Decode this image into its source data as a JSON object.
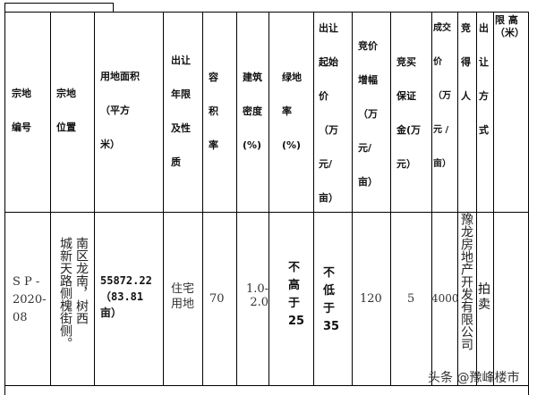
{
  "headers": {
    "parcel_no": "宗地\n\n编号",
    "location": "宗地\n\n位置",
    "area": "用地面积\n\n（平方\n\n米）",
    "term_use": "出让\n\n年限\n\n及性\n\n质",
    "far": "容\n\n积\n\n率",
    "density": "建筑\n\n密度\n\n(%)",
    "green": "绿地\n\n率\n\n(%)",
    "start_price": "出让\n\n起始\n\n价\n\n（万\n\n元/\n\n亩）",
    "increment": "竞价\n\n增幅\n\n（万\n\n元/\n\n亩）",
    "deposit": "竞买\n\n保证\n\n金(万\n\n元）",
    "deal_price": "成交\n\n价\n\n（万\n\n元 /\n\n亩）",
    "winner": "竞\n\n得\n\n人",
    "method": "出\n\n让\n\n方\n\n式",
    "height_limit": "限 高\n（米）"
  },
  "row": {
    "parcel_no": "S P -\n2020-\n08",
    "location_col1": "南区龙南，树西",
    "location_col2": "城新天路侧槐街侧。",
    "area": "55872.22\n（83.81\n亩）",
    "term_use": "住宅\n用地",
    "far": "70",
    "density": "1.0-\n2.0",
    "green": "不\n高\n于\n25",
    "start_price": "不\n低\n于\n35",
    "increment": "120",
    "deposit": "5",
    "deal_price": "4000",
    "winner": "豫龙房地产开发有限公司",
    "method": "拍\n卖",
    "height_limit": ""
  },
  "watermark": "头条 @豫峰楼市"
}
